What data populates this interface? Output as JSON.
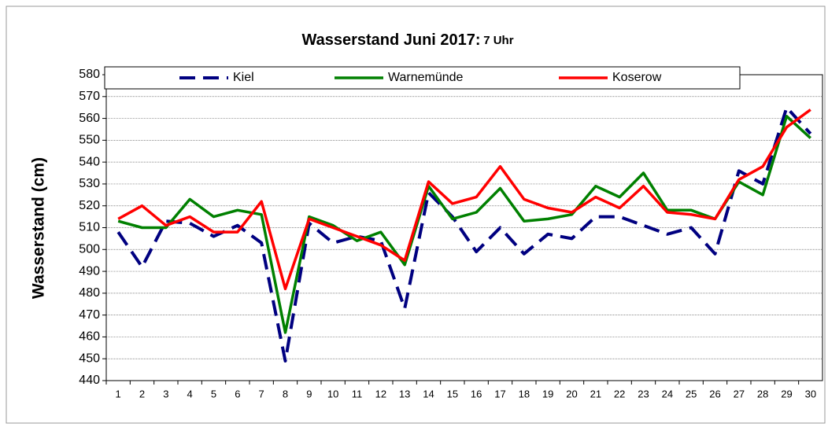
{
  "chart_data": {
    "type": "line",
    "title": "Wasserstand Juni 2017:",
    "subtitle": "7 Uhr",
    "y_label": "Wasserstand (cm)",
    "categories": [
      "1",
      "2",
      "3",
      "4",
      "5",
      "6",
      "7",
      "8",
      "9",
      "10",
      "11",
      "12",
      "13",
      "14",
      "15",
      "16",
      "17",
      "18",
      "19",
      "20",
      "21",
      "22",
      "23",
      "24",
      "25",
      "26",
      "27",
      "28",
      "29",
      "30"
    ],
    "series": [
      {
        "name": "Kiel",
        "color": "#000080",
        "dashed": true,
        "values": [
          508,
          492,
          513,
          512,
          506,
          511,
          503,
          449,
          512,
          503,
          506,
          504,
          473,
          526,
          515,
          499,
          510,
          498,
          507,
          505,
          515,
          515,
          511,
          507,
          510,
          498,
          536,
          530,
          565,
          553
        ]
      },
      {
        "name": "Warnemünde",
        "color": "#008000",
        "dashed": false,
        "values": [
          513,
          510,
          510,
          523,
          515,
          518,
          516,
          462,
          515,
          511,
          504,
          508,
          493,
          529,
          514,
          517,
          528,
          513,
          514,
          516,
          529,
          524,
          535,
          518,
          518,
          514,
          531,
          525,
          561,
          551
        ]
      },
      {
        "name": "Koserow",
        "color": "#ff0000",
        "dashed": false,
        "values": [
          514,
          520,
          511,
          515,
          508,
          508,
          522,
          482,
          514,
          510,
          506,
          502,
          495,
          531,
          521,
          524,
          538,
          523,
          519,
          517,
          524,
          519,
          529,
          517,
          516,
          514,
          532,
          538,
          556,
          564
        ]
      }
    ],
    "ylim": [
      440,
      580
    ],
    "yticks": [
      440,
      450,
      460,
      470,
      480,
      490,
      500,
      510,
      520,
      530,
      540,
      550,
      560,
      570,
      580
    ],
    "grid": true,
    "legend": "top"
  }
}
